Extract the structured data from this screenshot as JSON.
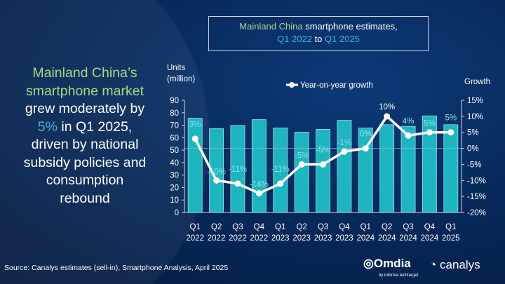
{
  "title_box": {
    "part1": "Mainland China",
    "part2": " smartphone estimates,",
    "part3": "Q1 2022",
    "part4": " to ",
    "part5": "Q1 2025"
  },
  "headline": {
    "l1": "Mainland China’s",
    "l2": "smartphone market",
    "l3": "grew moderately by",
    "l4a": "5%",
    "l4b": " in Q1 2025,",
    "l5": "driven by national",
    "l6": "subsidy policies and",
    "l7": "consumption",
    "l8": "rebound"
  },
  "source": "Source: Canalys estimates (sell-in), Smartphone Analysis, April 2025",
  "logos": {
    "omdia": "Omdia",
    "omdia_sub": "by informa techtarget",
    "canalys": "canalys"
  },
  "colors": {
    "bar": "#1fb5c0",
    "line": "#ffffff",
    "label": "#7fe0e6",
    "accent_green": "#a6d98a",
    "accent_blue": "#3fb7d8"
  },
  "chart_data": {
    "type": "bar+line",
    "categories": [
      [
        "Q1",
        "2022"
      ],
      [
        "Q2",
        "2022"
      ],
      [
        "Q3",
        "2022"
      ],
      [
        "Q4",
        "2022"
      ],
      [
        "Q1",
        "2023"
      ],
      [
        "Q2",
        "2023"
      ],
      [
        "Q3",
        "2023"
      ],
      [
        "Q4",
        "2023"
      ],
      [
        "Q1",
        "2024"
      ],
      [
        "Q2",
        "2024"
      ],
      [
        "Q3",
        "2024"
      ],
      [
        "Q4",
        "2024"
      ],
      [
        "Q1",
        "2025"
      ]
    ],
    "ylabel_left": [
      "Units",
      "(million)"
    ],
    "ylabel_right": "Growth",
    "ylim_left": [
      0,
      90
    ],
    "yticks_left": [
      "0",
      "10",
      "20",
      "30",
      "40",
      "50",
      "60",
      "70",
      "80",
      "90"
    ],
    "ylim_right": [
      -20,
      15
    ],
    "yticks_right": [
      "-20%",
      "-15%",
      "-10%",
      "-5%",
      "0%",
      "5%",
      "10%",
      "15%"
    ],
    "units": [
      75.6,
      67.2,
      69.8,
      74.5,
      67.8,
      64.4,
      66.7,
      73.9,
      67.8,
      70.4,
      69.1,
      77.5,
      70.4
    ],
    "growth": [
      3,
      -10,
      -11,
      -14,
      -11,
      -5,
      -5,
      -1,
      0,
      10,
      4,
      5,
      5
    ],
    "growth_labels": [
      "3%",
      "-10%",
      "-11%",
      "-14%",
      "-11%",
      "-5%",
      "-5%",
      "-1%",
      "0%",
      "10%",
      "4%",
      "5%",
      "5%"
    ],
    "legend": "Year-on-year growth",
    "legend_position": "top-center"
  }
}
